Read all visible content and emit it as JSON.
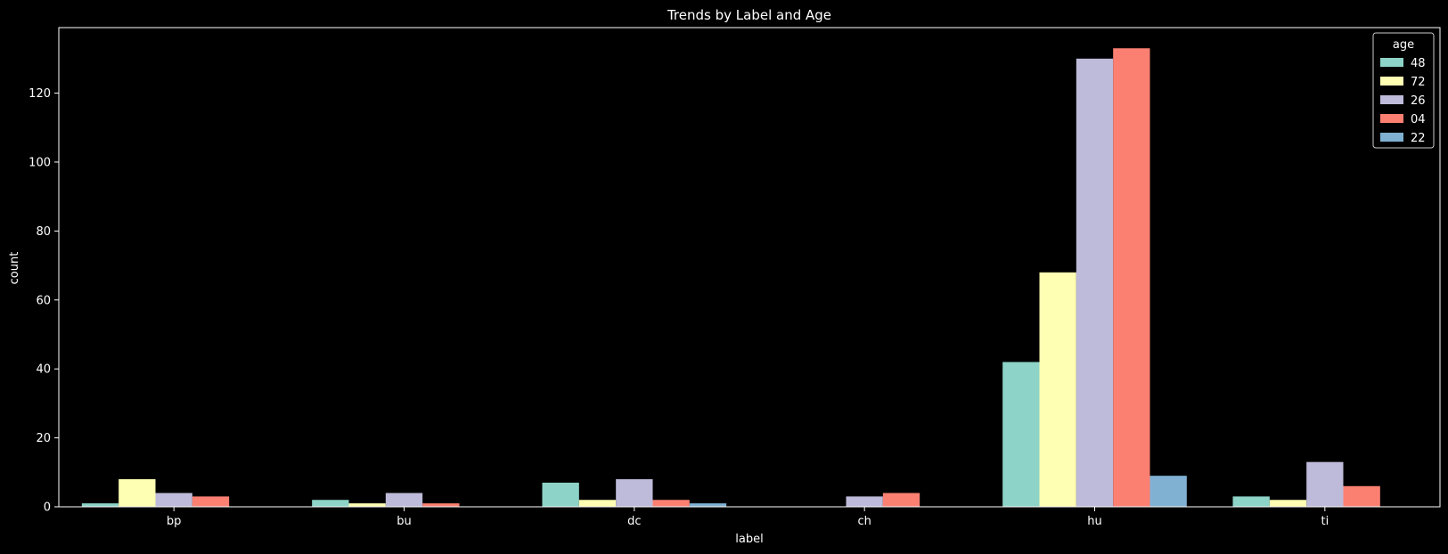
{
  "chart_data": {
    "type": "bar",
    "title": "Trends by Label and Age",
    "xlabel": "label",
    "ylabel": "count",
    "categories": [
      "bp",
      "bu",
      "dc",
      "ch",
      "hu",
      "ti"
    ],
    "ylim": [
      0,
      139
    ],
    "yticks": [
      0,
      20,
      40,
      60,
      80,
      100,
      120
    ],
    "grid": false,
    "legend": {
      "title": "age",
      "placement": "top-right"
    },
    "series": [
      {
        "name": "48",
        "color": "#8dd3c7",
        "values": [
          1,
          2,
          7,
          0,
          42,
          3
        ]
      },
      {
        "name": "72",
        "color": "#ffffb3",
        "values": [
          8,
          1,
          2,
          0,
          68,
          2
        ]
      },
      {
        "name": "26",
        "color": "#bebada",
        "values": [
          4,
          4,
          8,
          3,
          130,
          13
        ]
      },
      {
        "name": "04",
        "color": "#fb8072",
        "values": [
          3,
          1,
          2,
          4,
          133,
          6
        ]
      },
      {
        "name": "22",
        "color": "#80b1d3",
        "values": [
          0,
          0,
          1,
          0,
          9,
          0
        ]
      }
    ]
  }
}
